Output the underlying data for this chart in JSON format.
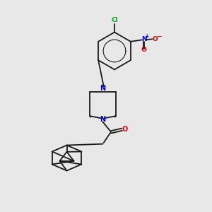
{
  "background_color": "#e8e8e8",
  "bond_color": "#1a1a1a",
  "bond_width": 1.3,
  "nitrogen_color": "#0000cc",
  "oxygen_color": "#dd0000",
  "chlorine_color": "#00aa00",
  "figsize": [
    3.0,
    3.0
  ],
  "dpi": 100,
  "xlim": [
    0,
    10
  ],
  "ylim": [
    0,
    10
  ]
}
